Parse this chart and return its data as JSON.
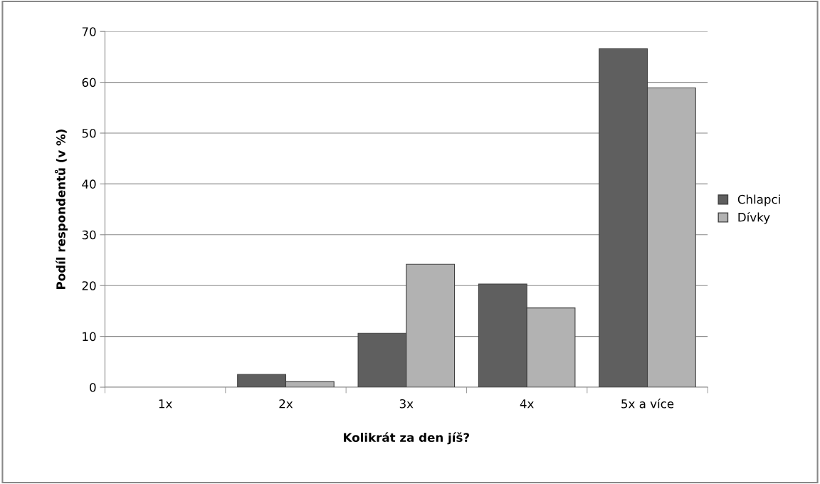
{
  "chart_data": {
    "type": "bar",
    "xlabel": "Kolikrát za den jíš?",
    "ylabel": "Podíl respondentů (v %)",
    "categories": [
      "1x",
      "2x",
      "3x",
      "4x",
      "5x a více"
    ],
    "series": [
      {
        "name": "Chlapci",
        "color": "#5f5f5f",
        "values": [
          0,
          2.5,
          10.6,
          20.3,
          66.6
        ]
      },
      {
        "name": "Dívky",
        "color": "#b2b2b2",
        "values": [
          0,
          1.1,
          24.2,
          15.6,
          58.9
        ]
      }
    ],
    "ylim": [
      0,
      70
    ],
    "yticks": [
      0,
      10,
      20,
      30,
      40,
      50,
      60,
      70
    ],
    "grid": "y",
    "legend": "right"
  }
}
